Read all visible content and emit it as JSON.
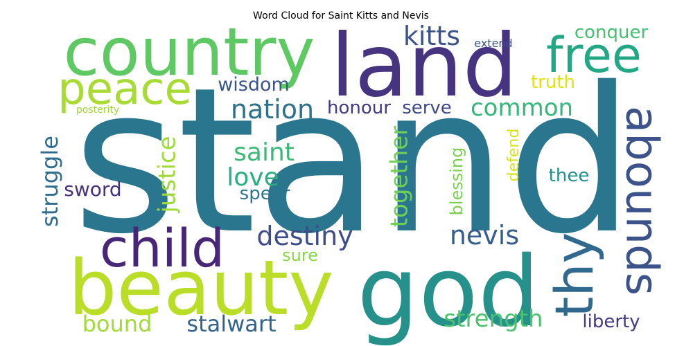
{
  "chart_data": {
    "type": "wordcloud",
    "title": "Word Cloud for Saint Kitts and Nevis",
    "words": [
      {
        "text": "stand",
        "color": "#2a768e"
      },
      {
        "text": "land",
        "color": "#463481"
      },
      {
        "text": "god",
        "color": "#26918b"
      },
      {
        "text": "country",
        "color": "#5ec962"
      },
      {
        "text": "beauty",
        "color": "#bade28"
      },
      {
        "text": "peace",
        "color": "#a8db34"
      },
      {
        "text": "free",
        "color": "#22a884"
      },
      {
        "text": "child",
        "color": "#482677"
      },
      {
        "text": "abounds",
        "color": "#3b528b"
      },
      {
        "text": "thy",
        "color": "#31688e"
      },
      {
        "text": "kitts",
        "color": "#3b528b"
      },
      {
        "text": "nation",
        "color": "#2c718e"
      },
      {
        "text": "destiny",
        "color": "#3e4c8a"
      },
      {
        "text": "nevis",
        "color": "#365d8d"
      },
      {
        "text": "common",
        "color": "#35b779"
      },
      {
        "text": "strength",
        "color": "#4ac16d"
      },
      {
        "text": "stalwart",
        "color": "#33638d"
      },
      {
        "text": "bound",
        "color": "#a2da37"
      },
      {
        "text": "justice",
        "color": "#a0da39"
      },
      {
        "text": "together",
        "color": "#70cf57"
      },
      {
        "text": "struggle",
        "color": "#2f6c8e"
      },
      {
        "text": "saint",
        "color": "#3aba76"
      },
      {
        "text": "love",
        "color": "#29af7f"
      },
      {
        "text": "wisdom",
        "color": "#3a548c"
      },
      {
        "text": "honour",
        "color": "#443983"
      },
      {
        "text": "serve",
        "color": "#3f4788"
      },
      {
        "text": "conquer",
        "color": "#44bf70"
      },
      {
        "text": "truth",
        "color": "#dde318"
      },
      {
        "text": "liberty",
        "color": "#453781"
      },
      {
        "text": "sword",
        "color": "#46307e"
      },
      {
        "text": "spear",
        "color": "#2b758e"
      },
      {
        "text": "sure",
        "color": "#8bd646"
      },
      {
        "text": "blessing",
        "color": "#7ad151"
      },
      {
        "text": "defend",
        "color": "#d5e21a"
      },
      {
        "text": "thee",
        "color": "#21918c"
      },
      {
        "text": "extend",
        "color": "#3a548c"
      },
      {
        "text": "posterity",
        "color": "#a0da39"
      }
    ]
  }
}
